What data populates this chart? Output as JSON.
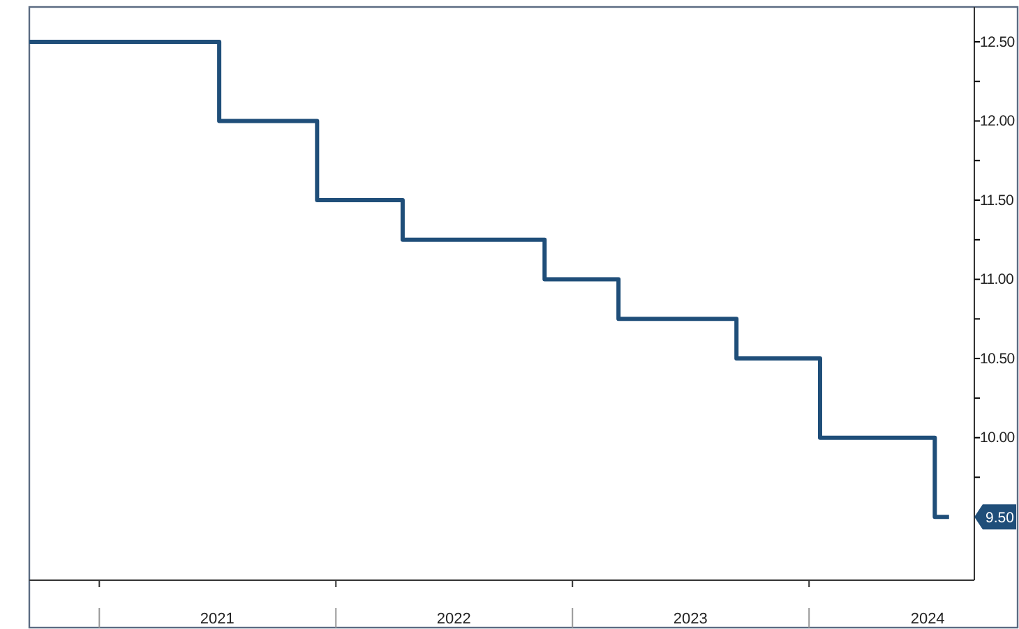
{
  "chart_data": {
    "type": "step",
    "x": [
      "2020-09-15",
      "2021-07-05",
      "2021-12-03",
      "2022-04-14",
      "2022-11-19",
      "2023-03-13",
      "2023-09-11",
      "2024-01-18",
      "2024-07-13",
      "2024-08-04"
    ],
    "series": [
      {
        "color": "#1f4e79",
        "values": [
          12.5,
          12.0,
          11.5,
          11.25,
          11.0,
          10.75,
          10.5,
          10.0,
          9.5,
          9.5
        ]
      }
    ],
    "xlim": [
      "2020-09-15",
      "2024-09-12"
    ],
    "xticks": [
      {
        "value": "2021-01-01",
        "label": null
      },
      {
        "value": "2021-07-02",
        "label": "2021"
      },
      {
        "value": "2022-01-01",
        "label": null
      },
      {
        "value": "2022-07-02",
        "label": "2022"
      },
      {
        "value": "2023-01-01",
        "label": null
      },
      {
        "value": "2023-07-02",
        "label": "2023"
      },
      {
        "value": "2024-01-01",
        "label": null
      },
      {
        "value": "2024-07-02",
        "label": "2024"
      }
    ],
    "ylim": [
      9.1,
      12.72
    ],
    "yticks": [
      {
        "value": 9.5,
        "label": null
      },
      {
        "value": 9.75,
        "label": null
      },
      {
        "value": 10.0,
        "label": "10.00"
      },
      {
        "value": 10.25,
        "label": null
      },
      {
        "value": 10.5,
        "label": "10.50"
      },
      {
        "value": 10.75,
        "label": null
      },
      {
        "value": 11.0,
        "label": "11.00"
      },
      {
        "value": 11.25,
        "label": null
      },
      {
        "value": 11.5,
        "label": "11.50"
      },
      {
        "value": 11.75,
        "label": null
      },
      {
        "value": 12.0,
        "label": "12.00"
      },
      {
        "value": 12.25,
        "label": null
      },
      {
        "value": 12.5,
        "label": "12.50"
      }
    ],
    "annotations": [
      "9.50"
    ],
    "grid": false
  }
}
